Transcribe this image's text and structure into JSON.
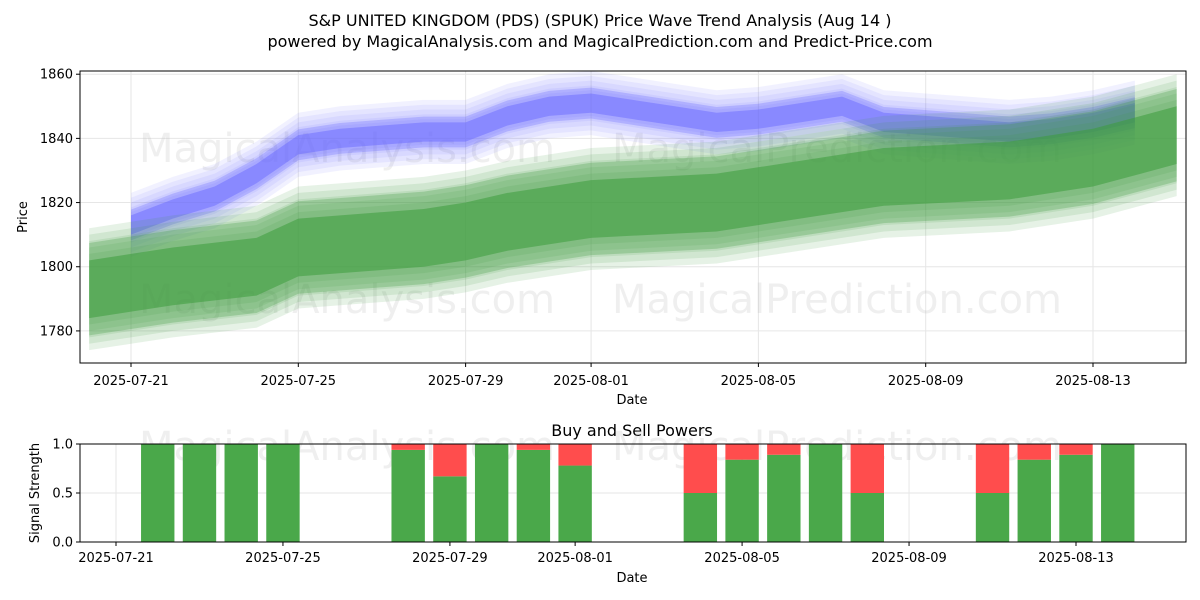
{
  "title_line1": "S&P UNITED KINGDOM (PDS) (SPUK) Price Wave Trend Analysis (Aug 14 )",
  "title_line2": "powered by MagicalAnalysis.com and MagicalPrediction.com and Predict-Price.com",
  "watermarks": [
    "MagicalAnalysis.com",
    "MagicalPrediction.com"
  ],
  "colors": {
    "blue": "#6464ff",
    "green": "#3c9c3c",
    "buy": "#4aa84a",
    "sell": "#ff4d4d"
  },
  "chart_data": [
    {
      "type": "area",
      "xlabel": "Date",
      "ylabel": "Price",
      "ylim": [
        1770,
        1861
      ],
      "xlim": [
        "2025-07-20",
        "2025-08-15"
      ],
      "yticks": [
        1780,
        1800,
        1820,
        1840,
        1860
      ],
      "xticks": [
        "2025-07-21",
        "2025-07-25",
        "2025-07-29",
        "2025-08-01",
        "2025-08-05",
        "2025-08-09",
        "2025-08-13"
      ],
      "grid": true,
      "series": [
        {
          "color": "blue",
          "dates": [
            "2025-07-21",
            "2025-07-22",
            "2025-07-23",
            "2025-07-24",
            "2025-07-25",
            "2025-07-26",
            "2025-07-27",
            "2025-07-28",
            "2025-07-29",
            "2025-07-30",
            "2025-07-31",
            "2025-08-01",
            "2025-08-02",
            "2025-08-03",
            "2025-08-04",
            "2025-08-05",
            "2025-08-06",
            "2025-08-07",
            "2025-08-08",
            "2025-08-09",
            "2025-08-10",
            "2025-08-11",
            "2025-08-12",
            "2025-08-13",
            "2025-08-14"
          ],
          "center": [
            1813,
            1818,
            1822,
            1829,
            1838,
            1840,
            1841,
            1842,
            1842,
            1847,
            1850,
            1851,
            1849,
            1847,
            1845,
            1846,
            1848,
            1850,
            1845,
            1844,
            1843,
            1842,
            1843,
            1845,
            1848
          ],
          "inner_width": 3,
          "outer_width": 7
        },
        {
          "color": "green",
          "dates": [
            "2025-07-20",
            "2025-07-22",
            "2025-07-24",
            "2025-07-25",
            "2025-07-28",
            "2025-07-29",
            "2025-07-30",
            "2025-08-01",
            "2025-08-04",
            "2025-08-07",
            "2025-08-08",
            "2025-08-11",
            "2025-08-13",
            "2025-08-15"
          ],
          "center": [
            1793,
            1797,
            1800,
            1806,
            1809,
            1811,
            1814,
            1818,
            1820,
            1826,
            1828,
            1830,
            1834,
            1841
          ],
          "inner_width": 9,
          "outer_width": 15
        }
      ]
    },
    {
      "type": "bar",
      "title": "Buy and Sell Powers",
      "xlabel": "Date",
      "ylabel": "Signal Strength",
      "ylim": [
        0,
        1.0
      ],
      "yticks": [
        "0.0",
        "0.5",
        "1.0"
      ],
      "xticks": [
        "2025-07-21",
        "2025-07-25",
        "2025-07-29",
        "2025-08-01",
        "2025-08-05",
        "2025-08-09",
        "2025-08-13"
      ],
      "grid": true,
      "bars": [
        {
          "date": "2025-07-22",
          "buy": 1.0,
          "sell": 0.0
        },
        {
          "date": "2025-07-23",
          "buy": 1.0,
          "sell": 0.0
        },
        {
          "date": "2025-07-24",
          "buy": 1.0,
          "sell": 0.0
        },
        {
          "date": "2025-07-25",
          "buy": 1.0,
          "sell": 0.0
        },
        {
          "date": "2025-07-28",
          "buy": 0.94,
          "sell": 0.06
        },
        {
          "date": "2025-07-29",
          "buy": 0.67,
          "sell": 0.33
        },
        {
          "date": "2025-07-30",
          "buy": 1.0,
          "sell": 0.0
        },
        {
          "date": "2025-07-31",
          "buy": 0.94,
          "sell": 0.06
        },
        {
          "date": "2025-08-01",
          "buy": 0.78,
          "sell": 0.22
        },
        {
          "date": "2025-08-04",
          "buy": 0.5,
          "sell": 0.5
        },
        {
          "date": "2025-08-05",
          "buy": 0.84,
          "sell": 0.16
        },
        {
          "date": "2025-08-06",
          "buy": 0.89,
          "sell": 0.11
        },
        {
          "date": "2025-08-07",
          "buy": 1.0,
          "sell": 0.0
        },
        {
          "date": "2025-08-08",
          "buy": 0.5,
          "sell": 0.5
        },
        {
          "date": "2025-08-11",
          "buy": 0.5,
          "sell": 0.5
        },
        {
          "date": "2025-08-12",
          "buy": 0.84,
          "sell": 0.16
        },
        {
          "date": "2025-08-13",
          "buy": 0.89,
          "sell": 0.11
        },
        {
          "date": "2025-08-14",
          "buy": 1.0,
          "sell": 0.0
        }
      ]
    }
  ]
}
